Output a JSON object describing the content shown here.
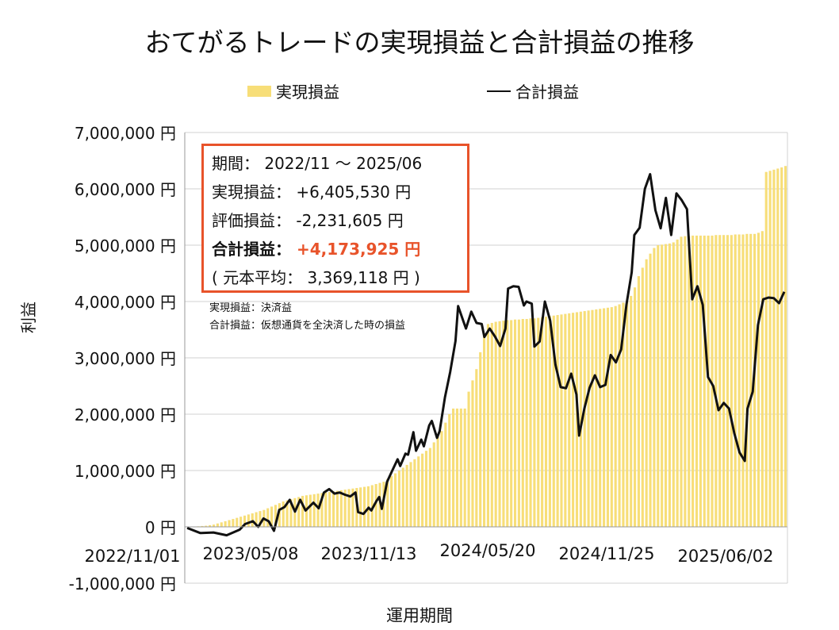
{
  "title": "おてがるトレードの実現損益と合計損益の推移",
  "legend": {
    "bar_label": "実現損益",
    "line_label": "合計損益"
  },
  "axis": {
    "ylabel": "利益",
    "xlabel": "運用期間"
  },
  "info_box": {
    "period_label": "期間：",
    "period_value": "2022/11 〜 2025/06",
    "realized_label": "実現損益：",
    "realized_value": "+6,405,530 円",
    "unrealized_label": "評価損益：",
    "unrealized_value": "-2,231,605 円",
    "total_label": "合計損益：",
    "total_value": "+4,173,925 円",
    "principal_open": "(",
    "principal_label": "元本平均：",
    "principal_value": "3,369,118 円",
    "principal_close": ")"
  },
  "notes": {
    "note1": "実現損益：決済益",
    "note2": "合計損益：仮想通貨を全決済した時の損益"
  },
  "colors": {
    "bar": "#f7de78",
    "line": "#111111",
    "accent": "#e8532a",
    "grid": "#d0d0d0"
  },
  "chart_data": {
    "type": "bar+line",
    "title": "おてがるトレードの実現損益と合計損益の推移",
    "xlabel": "運用期間",
    "ylabel": "利益",
    "ylim": [
      -1000000,
      7000000
    ],
    "y_ticks": [
      "-1,000,000 円",
      "0 円",
      "1,000,000 円",
      "2,000,000 円",
      "3,000,000 円",
      "4,000,000 円",
      "5,000,000 円",
      "6,000,000 円",
      "7,000,000 円"
    ],
    "x_ticks": [
      "2022/11/01",
      "2023/05/08",
      "2023/11/13",
      "2024/05/20",
      "2024/11/25",
      "2025/06/02"
    ],
    "x_range": [
      "2022/11/01",
      "2025/07/06"
    ],
    "series": [
      {
        "name": "実現損益",
        "type": "bar",
        "values": [
          0,
          0,
          5000,
          10000,
          15000,
          20000,
          30000,
          40000,
          60000,
          80000,
          100000,
          120000,
          140000,
          160000,
          180000,
          200000,
          220000,
          240000,
          260000,
          280000,
          300000,
          330000,
          360000,
          390000,
          420000,
          450000,
          470000,
          490000,
          510000,
          530000,
          550000,
          560000,
          570000,
          580000,
          590000,
          600000,
          610000,
          620000,
          630000,
          640000,
          650000,
          660000,
          670000,
          680000,
          690000,
          700000,
          710000,
          720000,
          740000,
          760000,
          780000,
          800000,
          850000,
          900000,
          950000,
          1000000,
          1050000,
          1100000,
          1150000,
          1200000,
          1250000,
          1300000,
          1350000,
          1400000,
          1500000,
          1600000,
          1700000,
          1850000,
          2000000,
          2100000,
          2100000,
          2100000,
          2100000,
          2400000,
          2600000,
          2800000,
          3100000,
          3400000,
          3600000,
          3620000,
          3640000,
          3650000,
          3660000,
          3670000,
          3670000,
          3680000,
          3680000,
          3690000,
          3690000,
          3700000,
          3700000,
          3710000,
          3720000,
          3730000,
          3740000,
          3750000,
          3760000,
          3770000,
          3780000,
          3790000,
          3800000,
          3810000,
          3820000,
          3830000,
          3840000,
          3850000,
          3860000,
          3870000,
          3880000,
          3890000,
          3900000,
          3920000,
          3950000,
          3980000,
          4010000,
          4100000,
          4250000,
          4450000,
          4600000,
          4750000,
          4850000,
          4950000,
          5000000,
          5010000,
          5020000,
          5030000,
          5050000,
          5100000,
          5150000,
          5160000,
          5160000,
          5170000,
          5170000,
          5170000,
          5170000,
          5170000,
          5170000,
          5180000,
          5180000,
          5180000,
          5180000,
          5180000,
          5190000,
          5190000,
          5190000,
          5200000,
          5200000,
          5200000,
          5220000,
          5250000,
          6300000,
          6320000,
          6340000,
          6360000,
          6380000,
          6405530
        ]
      },
      {
        "name": "合計損益",
        "type": "line",
        "points": [
          [
            0,
            -20000
          ],
          [
            5,
            -110000
          ],
          [
            10,
            -100000
          ],
          [
            15,
            -150000
          ],
          [
            20,
            -50000
          ],
          [
            22,
            50000
          ],
          [
            25,
            100000
          ],
          [
            27,
            0
          ],
          [
            29,
            150000
          ],
          [
            31,
            100000
          ],
          [
            33,
            -70000
          ],
          [
            35,
            300000
          ],
          [
            37,
            350000
          ],
          [
            39,
            480000
          ],
          [
            41,
            270000
          ],
          [
            43,
            480000
          ],
          [
            45,
            290000
          ],
          [
            48,
            430000
          ],
          [
            50,
            330000
          ],
          [
            52,
            610000
          ],
          [
            54,
            670000
          ],
          [
            56,
            590000
          ],
          [
            58,
            610000
          ],
          [
            60,
            570000
          ],
          [
            62,
            540000
          ],
          [
            64,
            610000
          ],
          [
            65,
            260000
          ],
          [
            67,
            230000
          ],
          [
            69,
            340000
          ],
          [
            70,
            290000
          ],
          [
            72,
            460000
          ],
          [
            73,
            530000
          ],
          [
            74,
            320000
          ],
          [
            76,
            800000
          ],
          [
            78,
            1000000
          ],
          [
            80,
            1200000
          ],
          [
            81,
            1080000
          ],
          [
            83,
            1300000
          ],
          [
            84,
            1280000
          ],
          [
            86,
            1680000
          ],
          [
            87,
            1350000
          ],
          [
            89,
            1550000
          ],
          [
            90,
            1430000
          ],
          [
            92,
            1800000
          ],
          [
            93,
            1880000
          ],
          [
            95,
            1580000
          ],
          [
            96,
            1700000
          ],
          [
            98,
            2300000
          ],
          [
            100,
            2750000
          ],
          [
            102,
            3300000
          ],
          [
            103,
            3920000
          ],
          [
            105,
            3650000
          ],
          [
            106,
            3520000
          ],
          [
            108,
            3820000
          ],
          [
            110,
            3620000
          ],
          [
            112,
            3600000
          ],
          [
            113,
            3370000
          ],
          [
            115,
            3520000
          ],
          [
            117,
            3380000
          ],
          [
            119,
            3210000
          ],
          [
            121,
            3520000
          ],
          [
            122,
            4230000
          ],
          [
            124,
            4270000
          ],
          [
            126,
            4260000
          ],
          [
            128,
            3930000
          ],
          [
            129,
            4000000
          ],
          [
            131,
            3960000
          ],
          [
            132,
            3200000
          ],
          [
            134,
            3290000
          ],
          [
            136,
            4000000
          ],
          [
            138,
            3660000
          ],
          [
            140,
            2880000
          ],
          [
            142,
            2480000
          ],
          [
            144,
            2460000
          ],
          [
            146,
            2720000
          ],
          [
            148,
            2350000
          ],
          [
            149,
            1620000
          ],
          [
            151,
            2100000
          ],
          [
            153,
            2470000
          ],
          [
            155,
            2690000
          ],
          [
            157,
            2480000
          ],
          [
            159,
            2520000
          ],
          [
            161,
            3050000
          ],
          [
            163,
            2920000
          ],
          [
            165,
            3150000
          ],
          [
            167,
            3950000
          ],
          [
            169,
            4520000
          ],
          [
            170,
            5180000
          ],
          [
            172,
            5310000
          ],
          [
            174,
            6000000
          ],
          [
            176,
            6260000
          ],
          [
            178,
            5620000
          ],
          [
            180,
            5300000
          ],
          [
            182,
            5840000
          ],
          [
            184,
            5180000
          ],
          [
            186,
            5920000
          ],
          [
            188,
            5800000
          ],
          [
            190,
            5640000
          ],
          [
            192,
            4040000
          ],
          [
            194,
            4270000
          ],
          [
            196,
            3940000
          ],
          [
            198,
            2660000
          ],
          [
            200,
            2500000
          ],
          [
            202,
            2070000
          ],
          [
            204,
            2200000
          ],
          [
            206,
            2100000
          ],
          [
            208,
            1660000
          ],
          [
            210,
            1320000
          ],
          [
            212,
            1170000
          ],
          [
            213,
            2100000
          ],
          [
            215,
            2400000
          ],
          [
            217,
            3580000
          ],
          [
            219,
            4040000
          ],
          [
            221,
            4070000
          ],
          [
            223,
            4060000
          ],
          [
            225,
            3970000
          ],
          [
            227,
            4173925
          ]
        ]
      }
    ]
  }
}
